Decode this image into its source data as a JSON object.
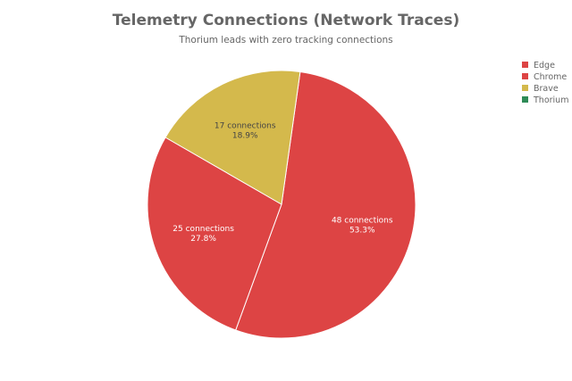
{
  "chart_data": {
    "type": "pie",
    "title": "Telemetry Connections (Network Traces)",
    "subtitle": "Thorium leads with zero tracking connections",
    "categories": [
      "Edge",
      "Chrome",
      "Brave",
      "Thorium"
    ],
    "values": [
      48,
      25,
      17,
      0
    ],
    "percent_labels": [
      "53.3%",
      "27.8%",
      "18.9%",
      "0%"
    ],
    "value_suffix": "connections",
    "legend_position": "top-right",
    "colors": {
      "Edge": "#dd4444",
      "Chrome": "#dd4444",
      "Brave": "#d4b94c",
      "Thorium": "#2e8b57"
    },
    "label_colors": {
      "Edge": "#ffffff",
      "Chrome": "#ffffff",
      "Brave": "#444444",
      "Thorium": "#ffffff"
    },
    "slice_border_color": "#ffffff"
  }
}
